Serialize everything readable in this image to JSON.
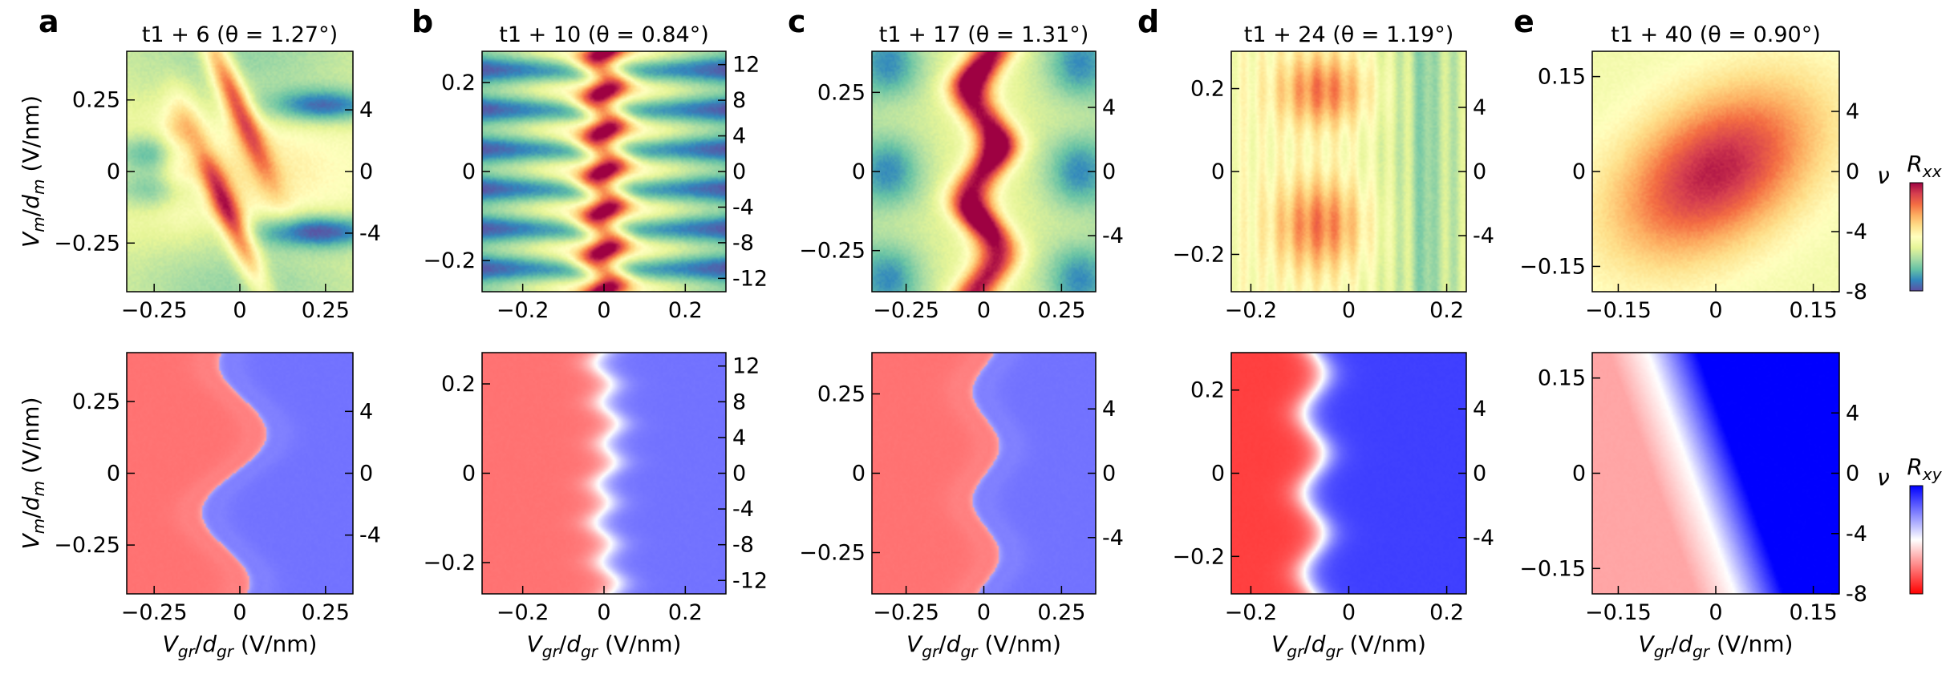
{
  "chart_data": [
    {
      "panel": "a",
      "type": "heatmap",
      "measure": "R_xx",
      "title": "t1 + 6 (θ = 1.27°)",
      "xlabel": "",
      "ylabel": "V_m/d_m (V/nm)",
      "xlim": [
        -0.33,
        0.33
      ],
      "ylim": [
        -0.42,
        0.42
      ],
      "y2lim": [
        -7.8,
        7.8
      ],
      "xticks": [
        -0.25,
        0,
        0.25
      ],
      "xtick_labels": [
        "−0.25",
        "0",
        "0.25"
      ],
      "yticks": [
        -0.25,
        0,
        0.25
      ],
      "ytick_labels": [
        "−0.25",
        "0",
        "0.25"
      ],
      "y2ticks": [
        -4,
        0,
        4
      ],
      "y2tick_labels": [
        "-4",
        "0",
        "4"
      ],
      "pattern": "slanted",
      "phase": [
        0,
        0
      ]
    },
    {
      "panel": "b",
      "type": "heatmap",
      "measure": "R_xx",
      "title": "t1 + 10 (θ = 0.84°)",
      "xlabel": "",
      "ylabel": "",
      "xlim": [
        -0.3,
        0.3
      ],
      "ylim": [
        -0.27,
        0.27
      ],
      "y2lim": [
        -13.5,
        13.5
      ],
      "xticks": [
        -0.2,
        0,
        0.2
      ],
      "xtick_labels": [
        "−0.2",
        "0",
        "0.2"
      ],
      "yticks": [
        -0.2,
        0,
        0.2
      ],
      "ytick_labels": [
        "−0.2",
        "0",
        "0.2"
      ],
      "y2ticks": [
        -12,
        -8,
        -4,
        0,
        4,
        8,
        12
      ],
      "y2tick_labels": [
        "-12",
        "-8",
        "-4",
        "0",
        "4",
        "8",
        "12"
      ],
      "pattern": "ladder",
      "phase": [
        0,
        0
      ]
    },
    {
      "panel": "c",
      "type": "heatmap",
      "measure": "R_xx",
      "title": "t1 + 17 (θ = 1.31°)",
      "xlabel": "",
      "ylabel": "",
      "xlim": [
        -0.36,
        0.36
      ],
      "ylim": [
        -0.38,
        0.38
      ],
      "y2lim": [
        -7.5,
        7.5
      ],
      "xticks": [
        -0.25,
        0,
        0.25
      ],
      "xtick_labels": [
        "−0.25",
        "0",
        "0.25"
      ],
      "yticks": [
        -0.25,
        0,
        0.25
      ],
      "ytick_labels": [
        "−0.25",
        "0",
        "0.25"
      ],
      "y2ticks": [
        -4,
        0,
        4
      ],
      "y2tick_labels": [
        "-4",
        "0",
        "4"
      ],
      "pattern": "zigzag",
      "phase": [
        0,
        0
      ]
    },
    {
      "panel": "d",
      "type": "heatmap",
      "measure": "R_xx",
      "title": "t1 + 24 (θ = 1.19°)",
      "xlabel": "",
      "ylabel": "",
      "xlim": [
        -0.24,
        0.24
      ],
      "ylim": [
        -0.29,
        0.29
      ],
      "y2lim": [
        -7.5,
        7.5
      ],
      "xticks": [
        -0.2,
        0,
        0.2
      ],
      "xtick_labels": [
        "−0.2",
        "0",
        "0.2"
      ],
      "yticks": [
        -0.2,
        0,
        0.2
      ],
      "ytick_labels": [
        "−0.2",
        "0",
        "0.2"
      ],
      "y2ticks": [
        -4,
        0,
        4
      ],
      "y2tick_labels": [
        "-4",
        "0",
        "4"
      ],
      "pattern": "blobs",
      "phase": [
        0,
        0
      ]
    },
    {
      "panel": "e",
      "type": "heatmap",
      "measure": "R_xx",
      "title": "t1 + 40 (θ = 0.90°)",
      "xlabel": "",
      "ylabel": "",
      "xlim": [
        -0.19,
        0.19
      ],
      "ylim": [
        -0.19,
        0.19
      ],
      "y2lim": [
        -8,
        8
      ],
      "xticks": [
        -0.15,
        0,
        0.15
      ],
      "xtick_labels": [
        "−0.15",
        "0",
        "0.15"
      ],
      "yticks": [
        -0.15,
        0,
        0.15
      ],
      "ytick_labels": [
        "−0.15",
        "0",
        "0.15"
      ],
      "y2ticks": [
        -8,
        -4,
        0,
        4
      ],
      "y2tick_labels": [
        "-8",
        "-4",
        "0",
        "4"
      ],
      "right_label": "ν",
      "colorbar": {
        "label": "R_xx",
        "cmap": "Spectral_r"
      },
      "pattern": "ellipse",
      "phase": [
        0,
        0
      ]
    },
    {
      "panel": "a",
      "type": "heatmap",
      "measure": "R_xy",
      "xlabel": "V_gr/d_gr (V/nm)",
      "ylabel": "V_m/d_m (V/nm)",
      "xlim": [
        -0.33,
        0.33
      ],
      "ylim": [
        -0.42,
        0.42
      ],
      "y2lim": [
        -7.8,
        7.8
      ],
      "xticks": [
        -0.25,
        0,
        0.25
      ],
      "xtick_labels": [
        "−0.25",
        "0",
        "0.25"
      ],
      "yticks": [
        -0.25,
        0,
        0.25
      ],
      "ytick_labels": [
        "−0.25",
        "0",
        "0.25"
      ],
      "y2ticks": [
        -4,
        0,
        4
      ],
      "y2tick_labels": [
        "-4",
        "0",
        "4"
      ],
      "pattern": "slanted"
    },
    {
      "panel": "b",
      "type": "heatmap",
      "measure": "R_xy",
      "xlabel": "V_gr/d_gr (V/nm)",
      "ylabel": "",
      "xlim": [
        -0.3,
        0.3
      ],
      "ylim": [
        -0.27,
        0.27
      ],
      "y2lim": [
        -13.5,
        13.5
      ],
      "xticks": [
        -0.2,
        0,
        0.2
      ],
      "xtick_labels": [
        "−0.2",
        "0",
        "0.2"
      ],
      "yticks": [
        -0.2,
        0,
        0.2
      ],
      "ytick_labels": [
        "−0.2",
        "0",
        "0.2"
      ],
      "y2ticks": [
        -12,
        -8,
        -4,
        0,
        4,
        8,
        12
      ],
      "y2tick_labels": [
        "-12",
        "-8",
        "-4",
        "0",
        "4",
        "8",
        "12"
      ],
      "pattern": "ladder"
    },
    {
      "panel": "c",
      "type": "heatmap",
      "measure": "R_xy",
      "xlabel": "V_gr/d_gr (V/nm)",
      "ylabel": "",
      "xlim": [
        -0.36,
        0.36
      ],
      "ylim": [
        -0.38,
        0.38
      ],
      "y2lim": [
        -7.5,
        7.5
      ],
      "xticks": [
        -0.25,
        0,
        0.25
      ],
      "xtick_labels": [
        "−0.25",
        "0",
        "0.25"
      ],
      "yticks": [
        -0.25,
        0,
        0.25
      ],
      "ytick_labels": [
        "−0.25",
        "0",
        "0.25"
      ],
      "y2ticks": [
        -4,
        0,
        4
      ],
      "y2tick_labels": [
        "-4",
        "0",
        "4"
      ],
      "pattern": "zigzag"
    },
    {
      "panel": "d",
      "type": "heatmap",
      "measure": "R_xy",
      "xlabel": "V_gr/d_gr (V/nm)",
      "ylabel": "",
      "xlim": [
        -0.24,
        0.24
      ],
      "ylim": [
        -0.29,
        0.29
      ],
      "y2lim": [
        -7.5,
        7.5
      ],
      "xticks": [
        -0.2,
        0,
        0.2
      ],
      "xtick_labels": [
        "−0.2",
        "0",
        "0.2"
      ],
      "yticks": [
        -0.2,
        0,
        0.2
      ],
      "ytick_labels": [
        "−0.2",
        "0",
        "0.2"
      ],
      "y2ticks": [
        -4,
        0,
        4
      ],
      "y2tick_labels": [
        "-4",
        "0",
        "4"
      ],
      "pattern": "blobs"
    },
    {
      "panel": "e",
      "type": "heatmap",
      "measure": "R_xy",
      "xlabel": "V_gr/d_gr (V/nm)",
      "ylabel": "",
      "xlim": [
        -0.19,
        0.19
      ],
      "ylim": [
        -0.19,
        0.19
      ],
      "y2lim": [
        -8,
        8
      ],
      "xticks": [
        -0.15,
        0,
        0.15
      ],
      "xtick_labels": [
        "−0.15",
        "0",
        "0.15"
      ],
      "yticks": [
        -0.15,
        0,
        0.15
      ],
      "ytick_labels": [
        "−0.15",
        "0",
        "0.15"
      ],
      "y2ticks": [
        -8,
        -4,
        0,
        4
      ],
      "y2tick_labels": [
        "-8",
        "-4",
        "0",
        "4"
      ],
      "right_label": "ν",
      "colorbar": {
        "label": "R_xy",
        "cmap": "bwr_r"
      },
      "pattern": "ellipse"
    }
  ],
  "panel_letters": [
    "a",
    "b",
    "c",
    "d",
    "e"
  ],
  "colors": {
    "rxx_low": "#5e4fa2",
    "rxx_mid": "#ffffbf",
    "rxx_high": "#9e0142",
    "rxy_neg": "#ff0000",
    "rxy_zero": "#ffffff",
    "rxy_pos": "#0000ff"
  }
}
